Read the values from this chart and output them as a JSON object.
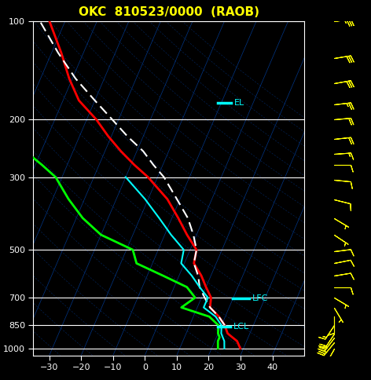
{
  "title": "OKC  810523/0000  (RAOB)",
  "background_color": "#000000",
  "title_color": "#ffff00",
  "axis_color": "#ffffff",
  "grid_color": "#0044aa",
  "xlim": [
    -35,
    50
  ],
  "pmin": 100,
  "pmax": 1050,
  "pressure_ticks": [
    100,
    200,
    300,
    500,
    700,
    850,
    1000
  ],
  "xticks": [
    -30,
    -20,
    -10,
    0,
    10,
    20,
    30,
    40
  ],
  "skew_factor": 45,
  "temp_profile": {
    "pressure": [
      1000,
      950,
      925,
      900,
      850,
      800,
      750,
      700,
      650,
      600,
      550,
      500,
      450,
      400,
      350,
      300,
      275,
      250,
      225,
      200,
      175,
      150,
      125,
      100
    ],
    "temperature": [
      29,
      27,
      25,
      23,
      21,
      18,
      14,
      13,
      10,
      7,
      3,
      2,
      -3,
      -8,
      -14,
      -23,
      -29,
      -35,
      -41,
      -47,
      -55,
      -61,
      -67,
      -75
    ]
  },
  "dewpoint_profile": {
    "pressure": [
      1000,
      950,
      925,
      900,
      850,
      800,
      750,
      700,
      650,
      600,
      550,
      500,
      450,
      400,
      350,
      300,
      275,
      250,
      225,
      200,
      175,
      150,
      125,
      100
    ],
    "dewpoint": [
      22,
      21,
      21,
      20,
      19,
      15,
      5,
      8,
      4,
      -5,
      -15,
      -18,
      -30,
      -38,
      -45,
      -52,
      -58,
      -65,
      -72,
      -80,
      -87,
      -93,
      -99,
      -105
    ]
  },
  "parcel_profile": {
    "pressure": [
      850,
      800,
      750,
      700,
      650,
      600,
      550,
      500,
      450,
      400,
      350,
      300,
      275,
      250,
      225,
      200,
      175,
      150,
      125,
      100
    ],
    "temperature": [
      21,
      18,
      14,
      11,
      8,
      6,
      3,
      2,
      -1,
      -5,
      -11,
      -18,
      -23,
      -28,
      -35,
      -42,
      -50,
      -59,
      -68,
      -78
    ]
  },
  "wetbulb_profile": {
    "pressure": [
      1000,
      950,
      925,
      900,
      850,
      800,
      750,
      700,
      650,
      600,
      550,
      500,
      450,
      400,
      350,
      300
    ],
    "temperature": [
      24,
      23,
      22,
      21,
      20,
      17,
      12,
      12,
      8,
      4,
      -1,
      -2,
      -8,
      -14,
      -21,
      -30
    ]
  },
  "el_pressure": 178,
  "el_temp_skewed": -9,
  "lfc_pressure": 705,
  "lfc_temp_skewed": 22,
  "lcl_pressure": 858,
  "lcl_temp_skewed": 21,
  "wind_pressures": [
    100,
    130,
    155,
    180,
    200,
    230,
    255,
    275,
    305,
    350,
    400,
    450,
    505,
    550,
    600,
    650,
    700,
    750,
    800,
    850,
    900,
    925,
    960,
    1000
  ],
  "wind_u": [
    -35,
    -30,
    -28,
    -25,
    -22,
    -18,
    -14,
    -12,
    -10,
    -8,
    -5,
    -3,
    -8,
    -10,
    -12,
    -8,
    -5,
    -3,
    0,
    8,
    10,
    15,
    18,
    10
  ],
  "wind_v": [
    -5,
    -5,
    -5,
    -3,
    -2,
    -2,
    -1,
    0,
    1,
    2,
    3,
    2,
    -1,
    -2,
    -2,
    0,
    3,
    5,
    8,
    12,
    15,
    20,
    22,
    18
  ]
}
